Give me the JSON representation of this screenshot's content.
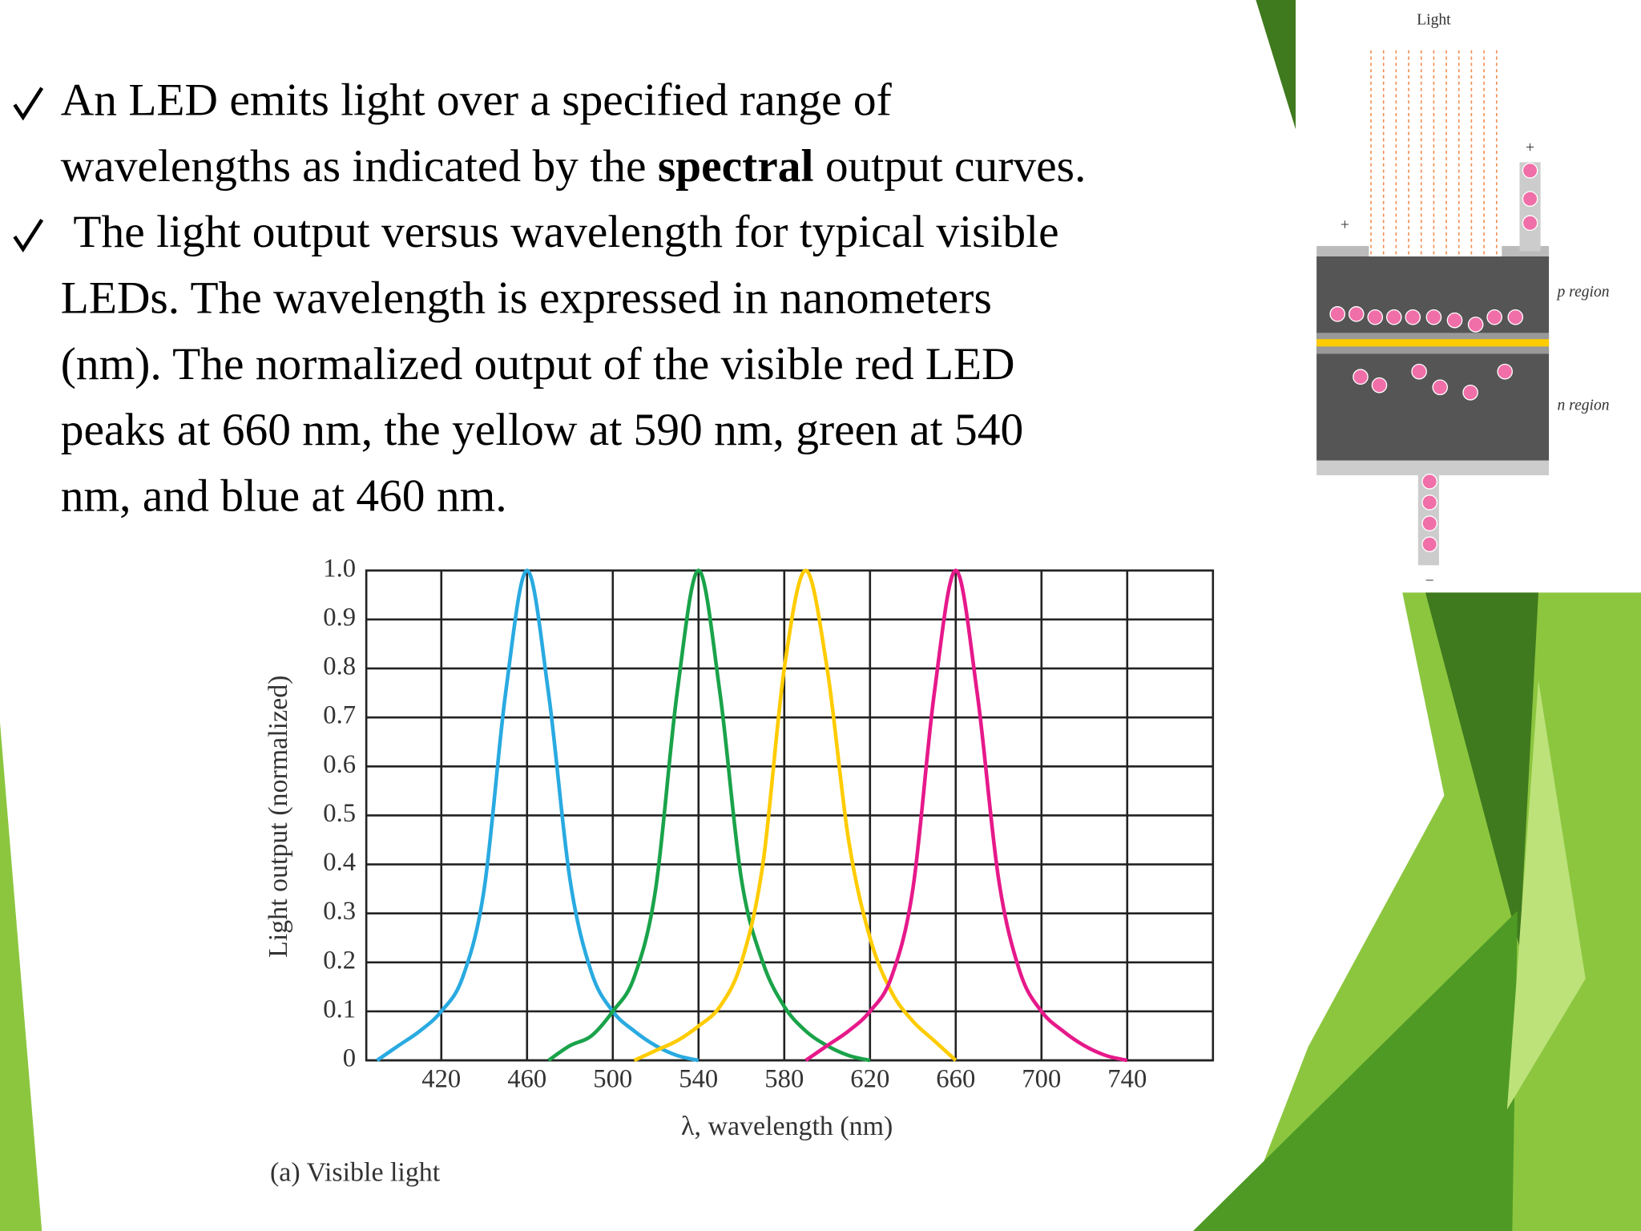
{
  "slide": {
    "bullets": [
      {
        "lines": [
          [
            {
              "text": "An LED emits light over a specified range of"
            }
          ],
          [
            {
              "text": "wavelengths as indicated by the "
            },
            {
              "text": "spectral",
              "bold": true
            },
            {
              "text": " output curves."
            }
          ]
        ]
      },
      {
        "lines": [
          [
            {
              "text": "The light output versus wavelength for typical visible"
            }
          ],
          [
            {
              "text": "LEDs. The wavelength is expressed in nanometers"
            }
          ],
          [
            {
              "text": "(nm). The normalized output of the visible red LED"
            }
          ],
          [
            {
              "text": "peaks at 660 nm, the yellow at 590 nm, green at 540"
            }
          ],
          [
            {
              "text": "nm, and blue at 460 nm."
            }
          ]
        ]
      }
    ]
  },
  "chart_data": {
    "type": "line",
    "y_label": "Light output (normalized)",
    "x_label": "λ, wavelength (nm)",
    "caption": "(a) Visible light",
    "x": [
      390,
      400,
      410,
      420,
      430,
      440,
      450,
      460,
      470,
      480,
      490,
      500,
      510,
      520,
      530,
      540,
      550,
      560,
      570,
      580,
      590,
      600,
      610,
      620,
      630,
      640,
      650,
      660,
      670,
      680,
      690,
      700,
      710,
      720,
      730,
      740
    ],
    "series": [
      {
        "color": "#29aae1",
        "values": [
          0,
          0.03,
          0.06,
          0.1,
          0.17,
          0.35,
          0.75,
          1,
          0.75,
          0.37,
          0.18,
          0.1,
          0.06,
          0.03,
          0.01,
          0,
          null,
          null,
          null,
          null,
          null,
          null,
          null,
          null,
          null,
          null,
          null,
          null,
          null,
          null,
          null,
          null,
          null,
          null,
          null,
          null
        ]
      },
      {
        "color": "#1aa34a",
        "values": [
          null,
          null,
          null,
          null,
          null,
          null,
          null,
          null,
          0,
          0.03,
          0.05,
          0.1,
          0.17,
          0.35,
          0.75,
          1,
          0.75,
          0.37,
          0.2,
          0.11,
          0.06,
          0.03,
          0.01,
          0,
          null,
          null,
          null,
          null,
          null,
          null,
          null,
          null,
          null,
          null,
          null,
          null
        ]
      },
      {
        "color": "#ffcc00",
        "values": [
          null,
          null,
          null,
          null,
          null,
          null,
          null,
          null,
          null,
          null,
          null,
          null,
          0,
          0.02,
          0.04,
          0.07,
          0.11,
          0.2,
          0.4,
          0.8,
          1,
          0.8,
          0.45,
          0.25,
          0.14,
          0.08,
          0.04,
          0,
          null,
          null,
          null,
          null,
          null,
          null,
          null,
          null
        ]
      },
      {
        "color": "#e6198a",
        "values": [
          null,
          null,
          null,
          null,
          null,
          null,
          null,
          null,
          null,
          null,
          null,
          null,
          null,
          null,
          null,
          null,
          null,
          null,
          null,
          null,
          0,
          0.03,
          0.06,
          0.1,
          0.17,
          0.35,
          0.75,
          1,
          0.75,
          0.37,
          0.18,
          0.1,
          0.06,
          0.03,
          0.01,
          0
        ]
      }
    ],
    "xlim": [
      385,
      780
    ],
    "xticks": [
      420,
      460,
      500,
      540,
      580,
      620,
      660,
      700,
      740
    ],
    "ylim": [
      0,
      1
    ],
    "yticks": [
      0,
      0.1,
      0.2,
      0.3,
      0.4,
      0.5,
      0.6,
      0.7,
      0.8,
      0.9,
      {
        "value": 1,
        "label": "1.0"
      }
    ],
    "grid": true
  },
  "diagram": {
    "labels": {
      "light": "Light",
      "plus_left": "+",
      "plus_right": "+",
      "p_region": "p region",
      "n_region": "n region",
      "minus": "−"
    }
  }
}
